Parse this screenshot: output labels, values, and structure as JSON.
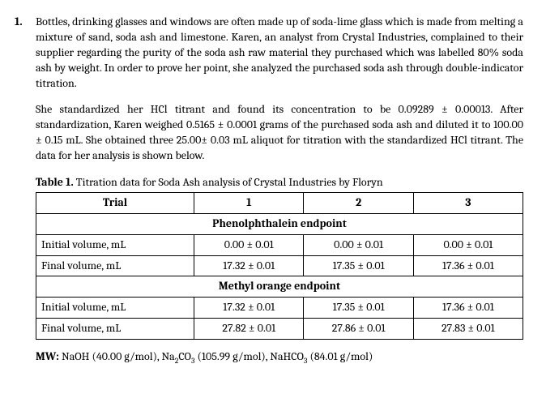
{
  "question_number": "1.",
  "para1": "Bottles, drinking glasses and windows are often made up of soda-lime glass which is made from melting a mixture of sand, soda ash and limestone. Karen, an analyst from Crystal Industries, complained to their supplier regarding the purity of the soda ash raw material they purchased which was labelled 80% soda ash by weight.  In order to prove her point, she analyzed the purchased soda ash through double-indicator titration.",
  "para2": "She standardized her HCl titrant and found its concentration to be 0.09289 ± 0.00013. After standardization, Karen weighed 0.5165 ± 0.0001 grams of the purchased soda ash and diluted it to 100.00 ± 0.15 mL. She obtained three 25.00± 0.03 mL aliquot for titration with the standardized HCl titrant. The data for her analysis is shown below.",
  "caption_bold": "Table 1.",
  "caption_rest": " Titration data for Soda Ash analysis of Crystal Industries by Floryn",
  "table": {
    "header_label": "Trial",
    "cols": [
      "1",
      "2",
      "3"
    ],
    "section1": "Phenolphthalein endpoint",
    "section2": "Methyl orange endpoint",
    "row_iv": "Initial volume, mL",
    "row_fv": "Final volume, mL",
    "p_iv": [
      "0.00 ± 0.01",
      "0.00 ± 0.01",
      "0.00 ± 0.01"
    ],
    "p_fv": [
      "17.32 ± 0.01",
      "17.35 ± 0.01",
      "17.36 ± 0.01"
    ],
    "m_iv": [
      "17.32 ± 0.01",
      "17.35 ± 0.01",
      "17.36 ± 0.01"
    ],
    "m_fv": [
      "27.82 ± 0.01",
      "27.86 ± 0.01",
      "27.83 ± 0.01"
    ]
  },
  "mw_label": "MW:",
  "mw_text": " NaOH (40.00 g/mol), Na",
  "mw_text2": "CO",
  "mw_text3": " (105.99 g/mol), NaHCO",
  "mw_text4": " (84.01 g/mol)",
  "sub2": "2",
  "sub3": "3"
}
